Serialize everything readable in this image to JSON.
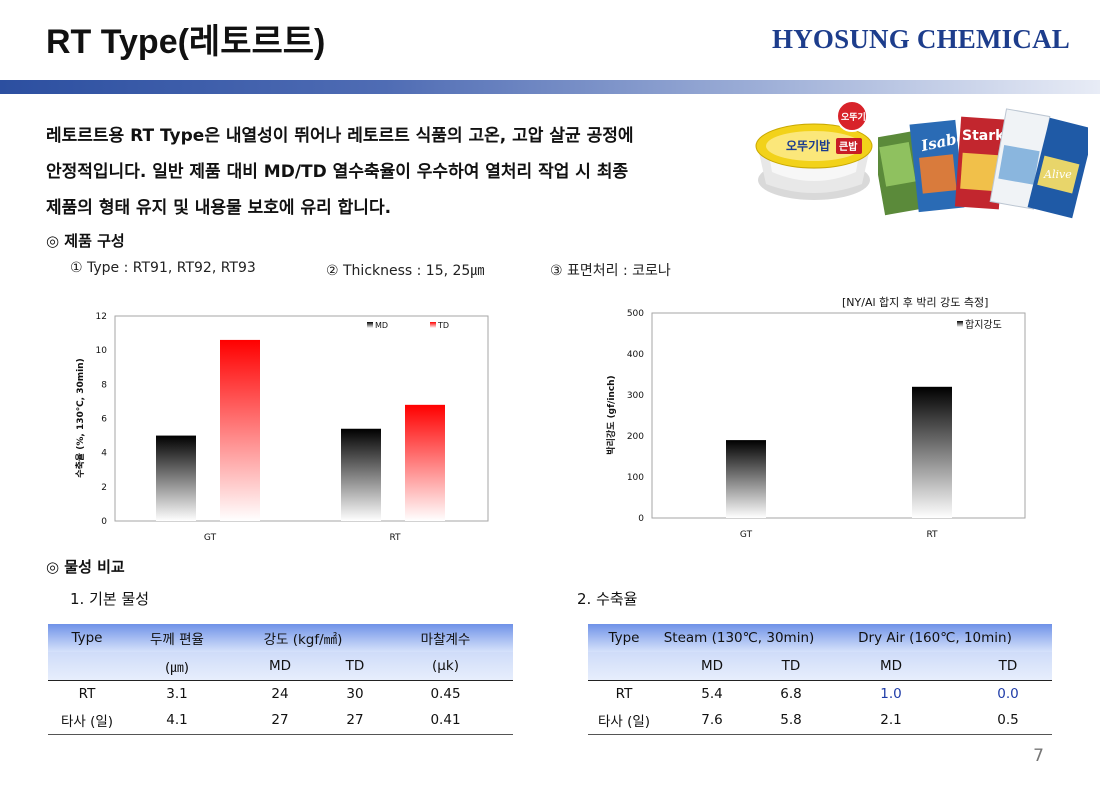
{
  "header": {
    "title": "RT Type(레토르트)",
    "brand": "HYOSUNG CHEMICAL"
  },
  "intro": {
    "lines": [
      "레토르트용 RT Type은 내열성이 뛰어나 레토르트 식품의 고온, 고압 살균 공정에",
      "안정적입니다. 일반 제품 대비 MD/TD 열수축율이 우수하여 열처리 작업 시 최종",
      "제품의 형태 유지 및 내용물 보호에 유리 합니다."
    ]
  },
  "product_section": {
    "heading": "◎ 제품 구성",
    "items": [
      "① Type : RT91, RT92, RT93",
      "② Thickness : 15, 25㎛",
      "③ 표면처리 : 코로나"
    ]
  },
  "photos": {
    "rice_bowl_text": "오뚜기밥",
    "rice_bowl_badge": "큰밥",
    "rice_bowl_logo": "오뚜기",
    "pouch_brands": [
      "Isabel",
      "Stark",
      "Alive"
    ]
  },
  "colors": {
    "brand": "#1d3d8c",
    "md_series": "#000000",
    "td_series": "#ff0000",
    "table_header": "#6f92e8"
  },
  "chart_data": [
    {
      "type": "bar",
      "categories": [
        "GT",
        "RT"
      ],
      "series": [
        {
          "name": "MD",
          "values": [
            5.0,
            5.4
          ]
        },
        {
          "name": "TD",
          "values": [
            10.6,
            6.8
          ]
        }
      ],
      "xlabel": "",
      "ylabel": "수축율 (%, 130℃, 30min)",
      "ylim": [
        0,
        12
      ],
      "yticks": [
        0,
        2,
        4,
        6,
        8,
        10,
        12
      ],
      "legend": "top-right",
      "grid": false
    },
    {
      "type": "bar",
      "categories": [
        "GT",
        "RT"
      ],
      "series": [
        {
          "name": "합지강도",
          "values": [
            190,
            320
          ]
        }
      ],
      "xlabel": "",
      "ylabel": "박리강도 (gf/inch)",
      "ylim": [
        0,
        500
      ],
      "yticks": [
        0,
        100,
        200,
        300,
        400,
        500
      ],
      "legend": "top-right",
      "grid": false,
      "note": "[NY/Al 합지 후 박리 강도 측정]"
    }
  ],
  "properties_section": {
    "heading": "◎ 물성 비교",
    "basic": {
      "subheading": "1. 기본 물성",
      "header_row1": [
        "Type",
        "두께 편율",
        "강도 (kgf/㎟)",
        "마찰계수"
      ],
      "header_row2": [
        "(㎛)",
        "MD",
        "TD",
        "(μk)"
      ],
      "rows": [
        [
          "RT",
          "3.1",
          "24",
          "30",
          "0.45"
        ],
        [
          "타사 (일)",
          "4.1",
          "27",
          "27",
          "0.41"
        ]
      ]
    },
    "shrink": {
      "subheading": "2. 수축율",
      "header_row1": [
        "Type",
        "Steam (130℃, 30min)",
        "Dry Air (160℃, 10min)"
      ],
      "header_row2": [
        "MD",
        "TD",
        "MD",
        "TD"
      ],
      "rows": [
        [
          "RT",
          "5.4",
          "6.8",
          "1.0",
          "0.0"
        ],
        [
          "타사 (일)",
          "7.6",
          "5.8",
          "2.1",
          "0.5"
        ]
      ]
    }
  },
  "page_number": "7"
}
